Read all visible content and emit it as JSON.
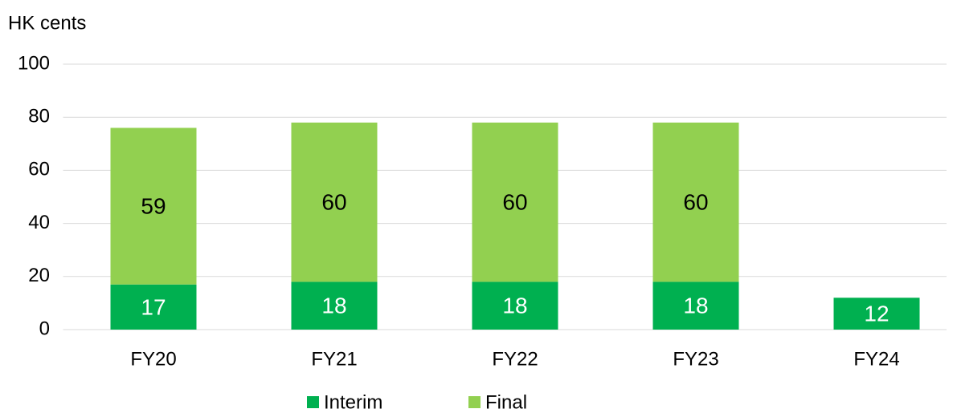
{
  "chart_data": {
    "type": "stacked_bar",
    "y_axis_label": "HK cents",
    "categories": [
      "FY20",
      "FY21",
      "FY22",
      "FY23",
      "FY24"
    ],
    "series": [
      {
        "name": "Interim",
        "color": "#00b050",
        "label_color": "#ffffff",
        "values": [
          17,
          18,
          18,
          18,
          12
        ]
      },
      {
        "name": "Final",
        "color": "#92d050",
        "label_color": "#000000",
        "values": [
          59,
          60,
          60,
          60,
          null
        ]
      }
    ],
    "ylim": [
      0,
      100
    ],
    "yticks": [
      0,
      20,
      40,
      60,
      80,
      100
    ],
    "grid": true,
    "legend": "bottom"
  }
}
